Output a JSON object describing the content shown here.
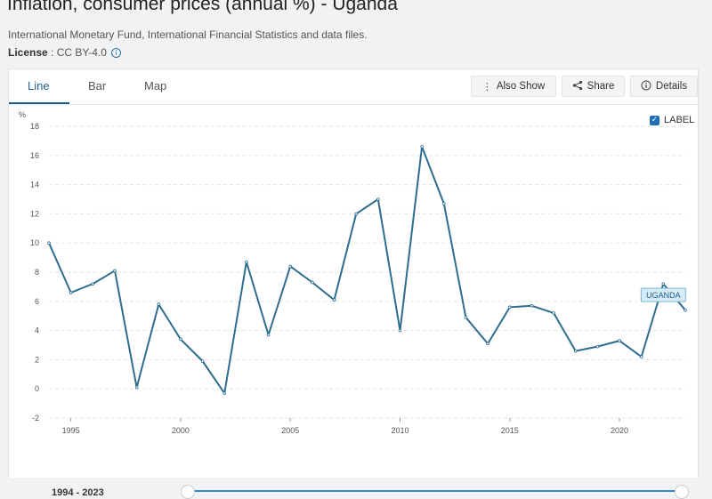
{
  "header": {
    "title": "Inflation, consumer prices (annual %) - Uganda",
    "subtitle": "International Monetary Fund, International Financial Statistics and data files.",
    "license_label": "License",
    "license_value": " : CC BY-4.0"
  },
  "tabs": [
    {
      "label": "Line"
    },
    {
      "label": "Bar"
    },
    {
      "label": "Map"
    }
  ],
  "toolbar": {
    "also_show": "Also Show",
    "share": "Share",
    "details": "Details"
  },
  "label_toggle": "LABEL",
  "footer": {
    "range": "1994 - 2023"
  },
  "colors": {
    "line": "#2f6d8f",
    "accent": "#1f5d8c",
    "grid": "#e3e3e3"
  },
  "chart_data": {
    "type": "line",
    "title": "Inflation, consumer prices (annual %) - Uganda",
    "ylabel": "%",
    "ylim": [
      -2,
      18
    ],
    "yticks": [
      -2,
      0,
      2,
      4,
      6,
      8,
      10,
      12,
      14,
      16,
      18
    ],
    "xlim": [
      1994,
      2023
    ],
    "xticks": [
      1995,
      2000,
      2005,
      2010,
      2015,
      2020
    ],
    "series": [
      {
        "name": "UGANDA",
        "x": [
          1994,
          1995,
          1996,
          1997,
          1998,
          1999,
          2000,
          2001,
          2002,
          2003,
          2004,
          2005,
          2006,
          2007,
          2008,
          2009,
          2010,
          2011,
          2012,
          2013,
          2014,
          2015,
          2016,
          2017,
          2018,
          2019,
          2020,
          2021,
          2022,
          2023
        ],
        "values": [
          10.0,
          6.6,
          7.2,
          8.1,
          0.1,
          5.8,
          3.4,
          1.9,
          -0.3,
          8.7,
          3.7,
          8.4,
          7.3,
          6.1,
          12.0,
          13.0,
          4.0,
          16.6,
          12.7,
          4.9,
          3.1,
          5.6,
          5.7,
          5.2,
          2.6,
          2.9,
          3.3,
          2.2,
          7.2,
          5.4
        ]
      }
    ],
    "end_label": "UGANDA"
  }
}
